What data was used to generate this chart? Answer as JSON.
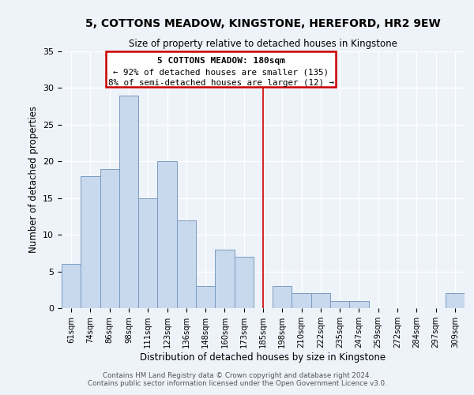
{
  "title": "5, COTTONS MEADOW, KINGSTONE, HEREFORD, HR2 9EW",
  "subtitle": "Size of property relative to detached houses in Kingstone",
  "xlabel": "Distribution of detached houses by size in Kingstone",
  "ylabel": "Number of detached properties",
  "bar_color": "#c8d8ed",
  "bar_edge_color": "#7a9cbf",
  "categories": [
    "61sqm",
    "74sqm",
    "86sqm",
    "98sqm",
    "111sqm",
    "123sqm",
    "136sqm",
    "148sqm",
    "160sqm",
    "173sqm",
    "185sqm",
    "198sqm",
    "210sqm",
    "222sqm",
    "235sqm",
    "247sqm",
    "259sqm",
    "272sqm",
    "284sqm",
    "297sqm",
    "309sqm"
  ],
  "values": [
    6,
    18,
    19,
    29,
    15,
    20,
    12,
    3,
    8,
    7,
    0,
    3,
    2,
    2,
    1,
    1,
    0,
    0,
    0,
    0,
    2
  ],
  "ylim": [
    0,
    35
  ],
  "yticks": [
    0,
    5,
    10,
    15,
    20,
    25,
    30,
    35
  ],
  "property_line_index": 10,
  "annotation_title": "5 COTTONS MEADOW: 180sqm",
  "annotation_line1": "← 92% of detached houses are smaller (135)",
  "annotation_line2": "8% of semi-detached houses are larger (12) →",
  "annotation_box_color": "#cc0000",
  "footer_line1": "Contains HM Land Registry data © Crown copyright and database right 2024.",
  "footer_line2": "Contains public sector information licensed under the Open Government Licence v3.0.",
  "background_color": "#eef2f9",
  "grid_color": "#ffffff"
}
